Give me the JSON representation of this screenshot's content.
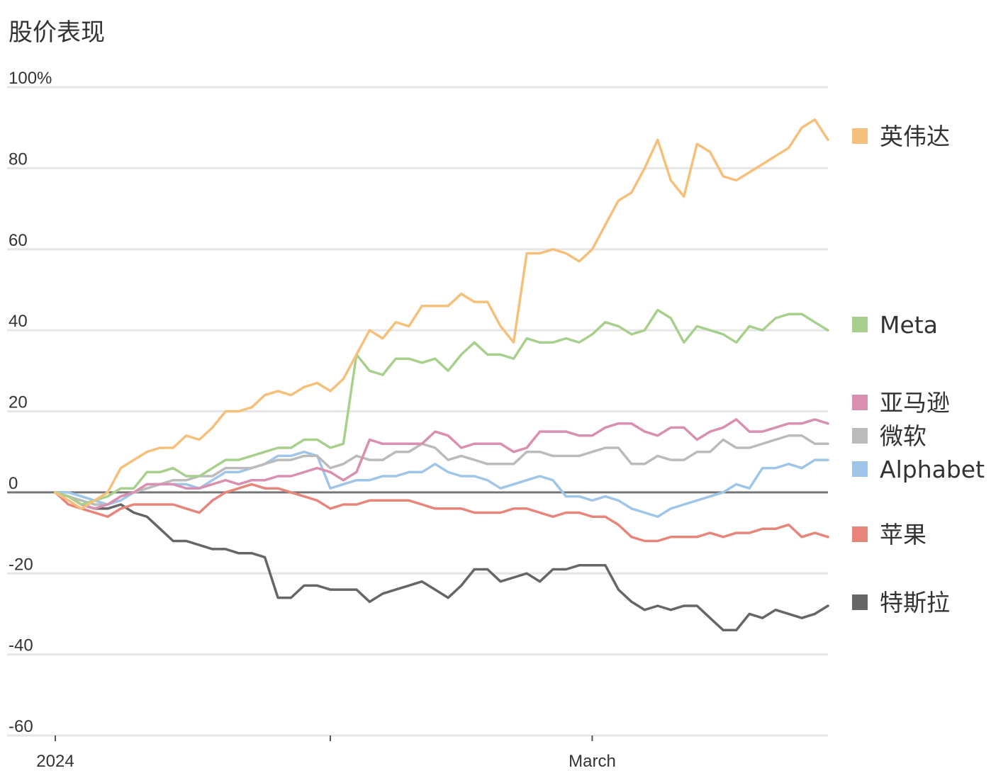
{
  "chart_data": {
    "type": "line",
    "title": "股价表现",
    "xlabel": "",
    "ylabel": "",
    "ylim": [
      -60,
      100
    ],
    "y_ticks": [
      100,
      80,
      60,
      40,
      20,
      0,
      -20,
      -40,
      -60
    ],
    "y_tick_labels": [
      "100%",
      "80",
      "60",
      "40",
      "20",
      "0",
      "-20",
      "-40",
      "-60"
    ],
    "x_ticks": [
      {
        "index": 0,
        "label": "2024"
      },
      {
        "index": 21,
        "label": ""
      },
      {
        "index": 41,
        "label": "March"
      }
    ],
    "grid": true,
    "legend": "right",
    "series": [
      {
        "name": "英伟达",
        "color": "#f5c07a",
        "values": [
          0,
          -2,
          -4,
          -2,
          0,
          6,
          8,
          10,
          11,
          11,
          14,
          13,
          16,
          20,
          20,
          21,
          24,
          25,
          24,
          26,
          27,
          25,
          28,
          34,
          40,
          38,
          42,
          41,
          46,
          46,
          46,
          49,
          47,
          47,
          41,
          37,
          59,
          59,
          60,
          59,
          57,
          60,
          66,
          72,
          74,
          80,
          87,
          77,
          73,
          86,
          84,
          78,
          77,
          79,
          81,
          83,
          85,
          90,
          92,
          87
        ]
      },
      {
        "name": "Meta",
        "color": "#a8d08d",
        "values": [
          0,
          -1,
          -3,
          -2,
          -1,
          1,
          1,
          5,
          5,
          6,
          4,
          4,
          6,
          8,
          8,
          9,
          10,
          11,
          11,
          13,
          13,
          11,
          12,
          34,
          30,
          29,
          33,
          33,
          32,
          33,
          30,
          34,
          37,
          34,
          34,
          33,
          38,
          37,
          37,
          38,
          37,
          39,
          42,
          41,
          39,
          40,
          45,
          43,
          37,
          41,
          40,
          39,
          37,
          41,
          40,
          43,
          44,
          44,
          42,
          40
        ]
      },
      {
        "name": "亚马逊",
        "color": "#d98fb0",
        "values": [
          0,
          -1,
          -3,
          -4,
          -3,
          -1,
          0,
          2,
          2,
          2,
          1,
          1,
          2,
          3,
          2,
          3,
          3,
          4,
          4,
          5,
          6,
          5,
          3,
          5,
          13,
          12,
          12,
          12,
          12,
          15,
          14,
          11,
          12,
          12,
          12,
          10,
          11,
          15,
          15,
          15,
          14,
          14,
          16,
          17,
          17,
          15,
          14,
          16,
          16,
          13,
          15,
          16,
          18,
          15,
          15,
          16,
          17,
          17,
          18,
          17
        ]
      },
      {
        "name": "微软",
        "color": "#bbbbbb",
        "values": [
          0,
          -1,
          -2,
          -3,
          -3,
          -1,
          0,
          1,
          2,
          3,
          3,
          4,
          4,
          6,
          6,
          6,
          7,
          8,
          8,
          9,
          9,
          6,
          7,
          9,
          8,
          8,
          10,
          10,
          12,
          11,
          8,
          9,
          8,
          7,
          7,
          7,
          10,
          10,
          9,
          9,
          9,
          10,
          11,
          11,
          7,
          7,
          9,
          8,
          8,
          10,
          10,
          13,
          11,
          11,
          12,
          13,
          14,
          14,
          12,
          12
        ]
      },
      {
        "name": "Alphabet",
        "color": "#9fc5e8",
        "values": [
          0,
          0,
          -1,
          -2,
          -3,
          -2,
          0,
          1,
          2,
          2,
          2,
          1,
          3,
          5,
          5,
          6,
          7,
          9,
          9,
          10,
          9,
          1,
          2,
          3,
          3,
          4,
          4,
          5,
          5,
          7,
          5,
          4,
          4,
          3,
          1,
          2,
          3,
          4,
          3,
          -1,
          -1,
          -2,
          -1,
          -2,
          -4,
          -5,
          -6,
          -4,
          -3,
          -2,
          -1,
          0,
          2,
          1,
          6,
          6,
          7,
          6,
          8,
          8
        ]
      },
      {
        "name": "苹果",
        "color": "#e8857a",
        "values": [
          0,
          -3,
          -4,
          -5,
          -6,
          -4,
          -3,
          -3,
          -3,
          -3,
          -4,
          -5,
          -2,
          0,
          1,
          2,
          1,
          1,
          0,
          -1,
          -2,
          -4,
          -3,
          -3,
          -2,
          -2,
          -2,
          -2,
          -3,
          -4,
          -4,
          -4,
          -5,
          -5,
          -5,
          -4,
          -4,
          -5,
          -6,
          -5,
          -5,
          -6,
          -6,
          -8,
          -11,
          -12,
          -12,
          -11,
          -11,
          -11,
          -10,
          -11,
          -10,
          -10,
          -9,
          -9,
          -8,
          -11,
          -10,
          -11
        ]
      },
      {
        "name": "特斯拉",
        "color": "#666666",
        "values": [
          0,
          -1,
          -3,
          -4,
          -4,
          -3,
          -5,
          -6,
          -9,
          -12,
          -12,
          -13,
          -14,
          -14,
          -15,
          -15,
          -16,
          -26,
          -26,
          -23,
          -23,
          -24,
          -24,
          -24,
          -27,
          -25,
          -24,
          -23,
          -22,
          -24,
          -26,
          -23,
          -19,
          -19,
          -22,
          -21,
          -20,
          -22,
          -19,
          -19,
          -18,
          -18,
          -18,
          -24,
          -27,
          -29,
          -28,
          -29,
          -28,
          -28,
          -31,
          -34,
          -34,
          -30,
          -31,
          -29,
          -30,
          -31,
          -30,
          -28
        ]
      }
    ]
  }
}
